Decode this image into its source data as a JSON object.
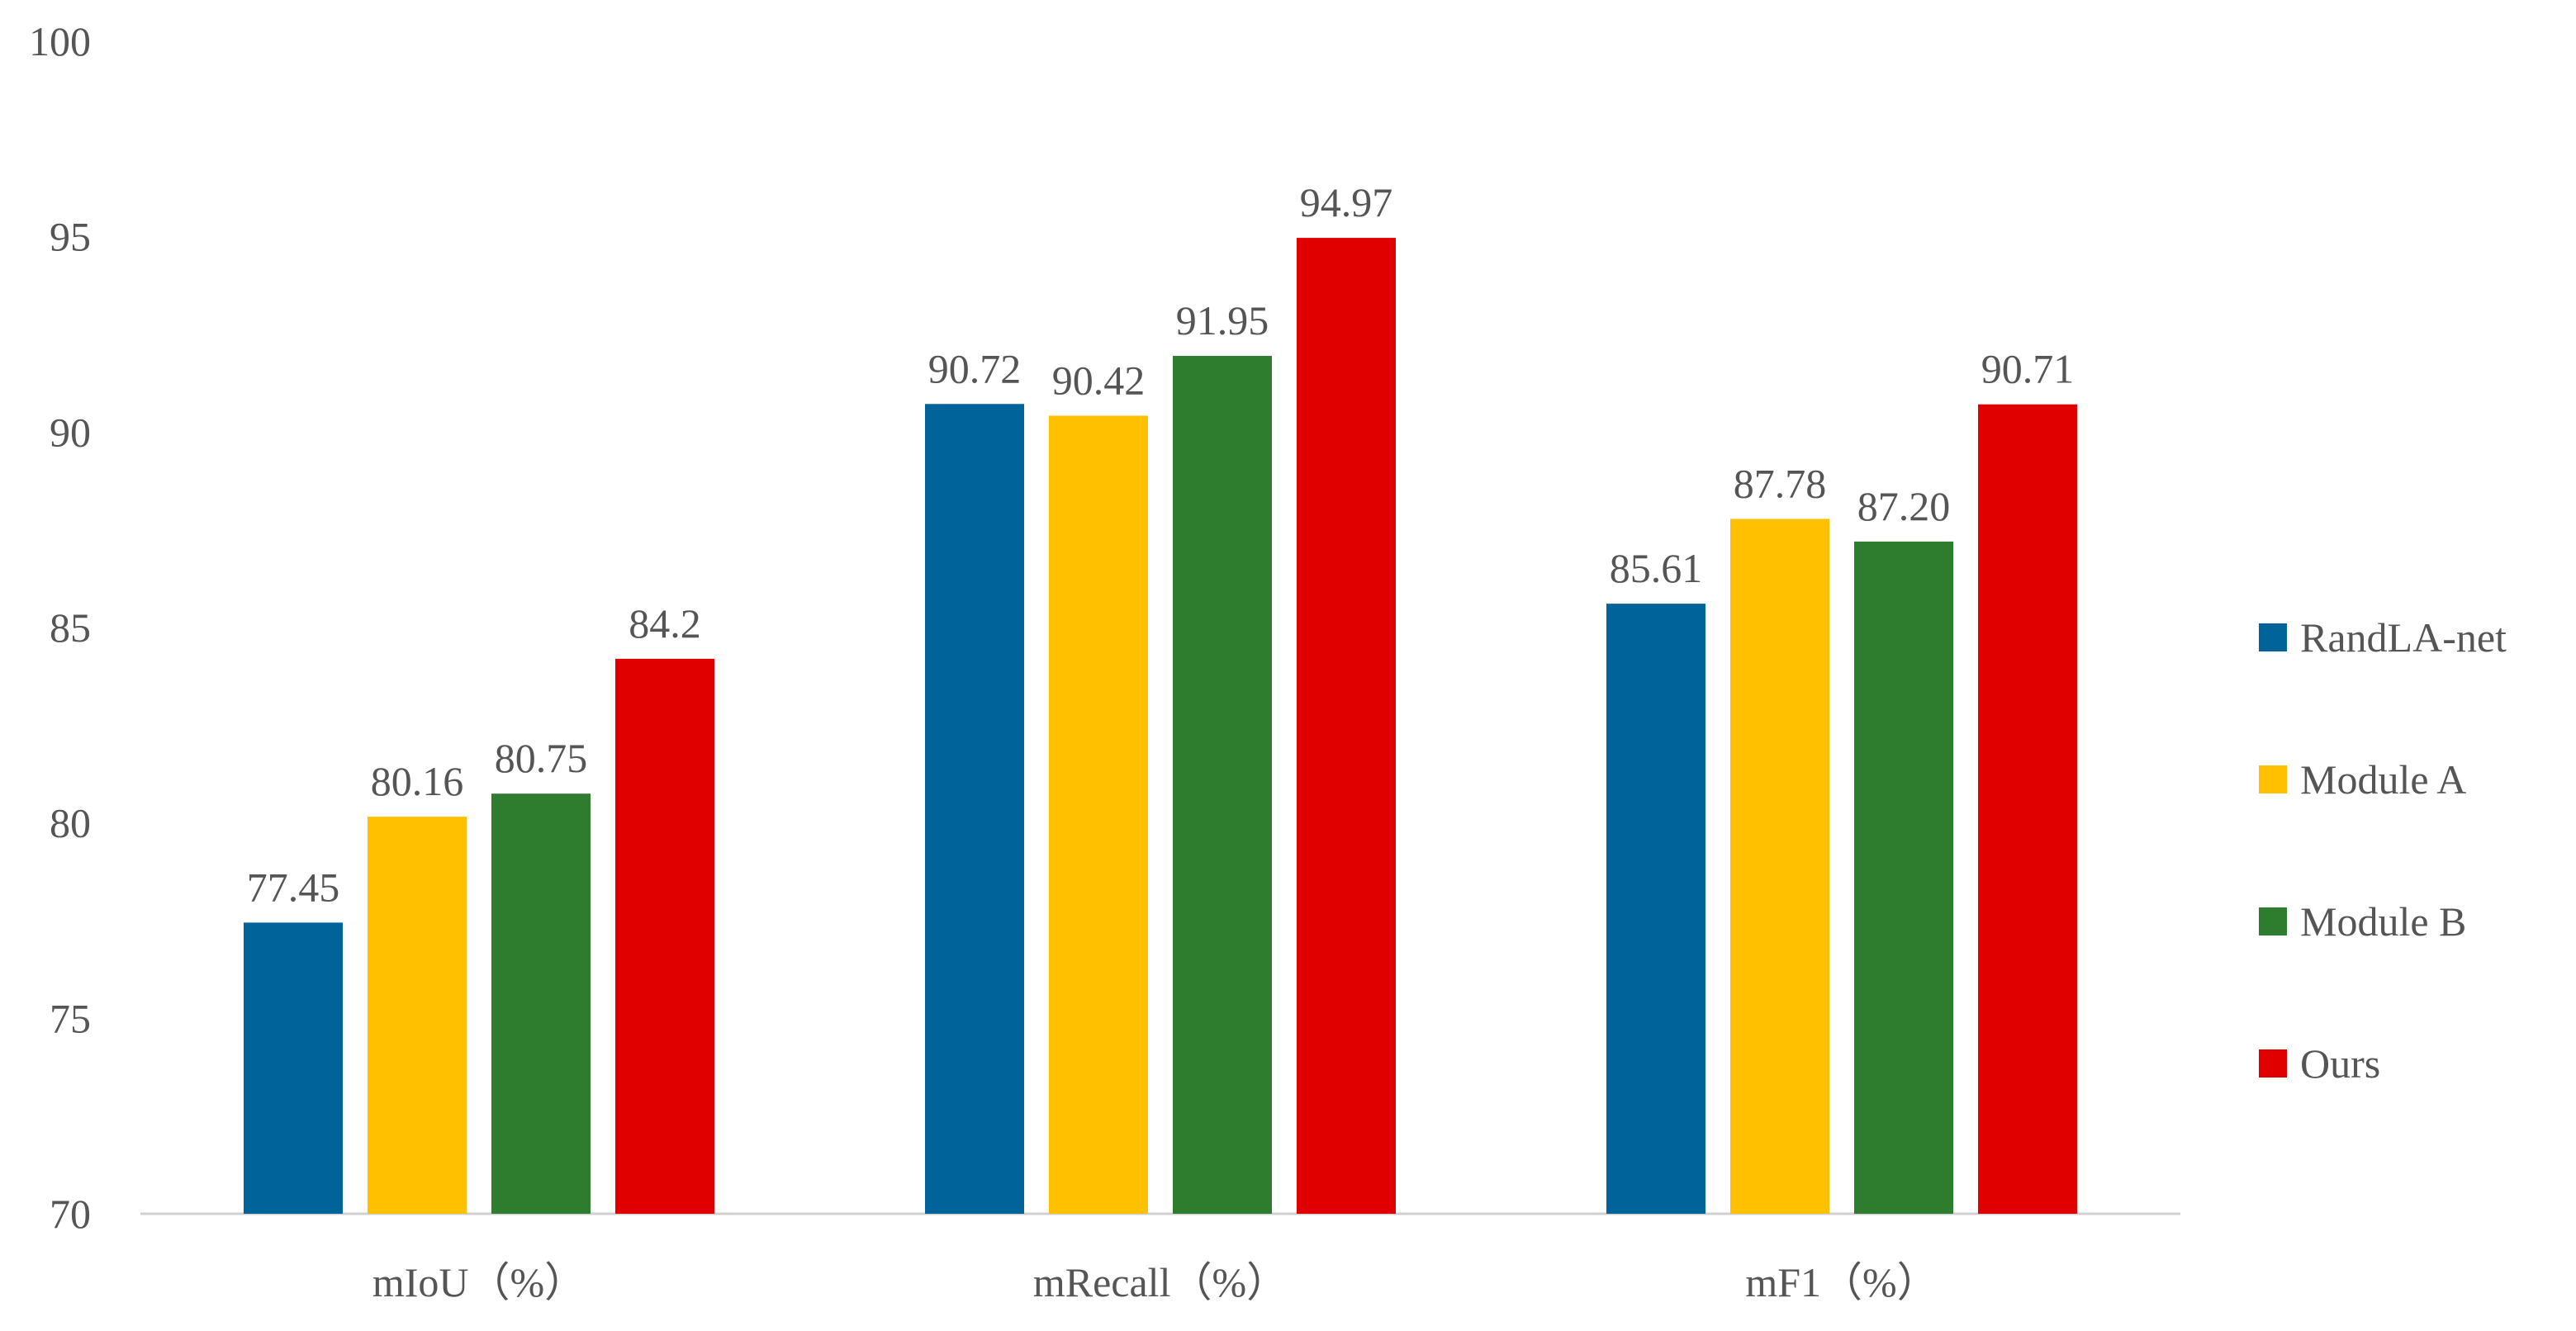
{
  "chart_data": {
    "type": "bar",
    "categories": [
      "mIoU（%）",
      "mRecall（%）",
      "mF1（%）"
    ],
    "series": [
      {
        "name": "RandLA-net",
        "color": "#00649A",
        "values": [
          77.45,
          90.72,
          85.61
        ],
        "labels": [
          "77.45",
          "90.72",
          "85.61"
        ]
      },
      {
        "name": "Module A",
        "color": "#FFC000",
        "values": [
          80.16,
          90.42,
          87.78
        ],
        "labels": [
          "80.16",
          "90.42",
          "87.78"
        ]
      },
      {
        "name": "Module B",
        "color": "#2E7D2E",
        "values": [
          80.75,
          91.95,
          87.2
        ],
        "labels": [
          "80.75",
          "91.95",
          "87.20"
        ]
      },
      {
        "name": "Ours",
        "color": "#E00000",
        "values": [
          84.2,
          94.97,
          90.71
        ],
        "labels": [
          "84.2",
          "94.97",
          "90.71"
        ]
      }
    ],
    "ylim": [
      70,
      100
    ],
    "yticks": [
      "70",
      "75",
      "80",
      "85",
      "90",
      "95",
      "100"
    ],
    "xlabel": "",
    "ylabel": "",
    "title": "",
    "grid": false,
    "legend_position": "right"
  }
}
